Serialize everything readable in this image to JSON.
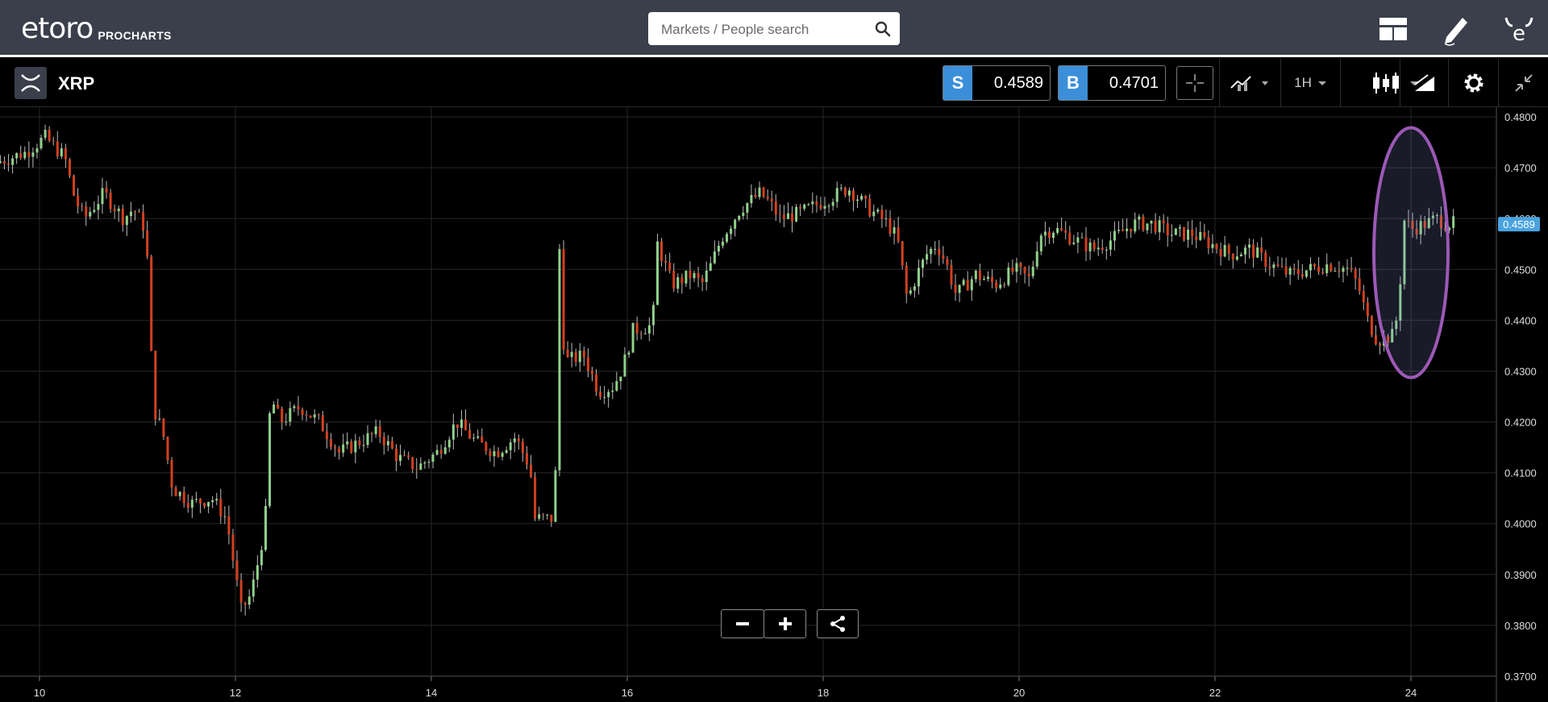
{
  "header": {
    "brand": "eToro",
    "sub_brand": "PROCHARTS",
    "search_placeholder": "Markets / People search",
    "icons": [
      "layout-icon",
      "pencil-icon",
      "etoro-profile-icon"
    ]
  },
  "toolbar": {
    "instrument": "XRP",
    "instrument_icon": "xrp-logo-icon",
    "sell_label": "S",
    "sell_price": "0.4589",
    "buy_label": "B",
    "buy_price": "0.4701",
    "timeframe": "1H",
    "accent_color": "#3b8fd9"
  },
  "chart_data": {
    "type": "candlestick",
    "symbol": "XRP",
    "timeframe": "1H",
    "xlabel": "",
    "ylabel": "",
    "x_ticks": [
      "10",
      "12",
      "14",
      "16",
      "18",
      "20",
      "22",
      "24"
    ],
    "x_range_days": [
      9.6,
      24.9
    ],
    "y_ticks": [
      "0.4800",
      "0.4700",
      "0.4600",
      "0.4500",
      "0.4400",
      "0.4300",
      "0.4200",
      "0.4100",
      "0.4000",
      "0.3900",
      "0.3800",
      "0.3700"
    ],
    "ylim": [
      0.37,
      0.48
    ],
    "current_price": "0.4589",
    "up_color": "#8fd18a",
    "down_color": "#d2401e",
    "highlight": {
      "shape": "ellipse",
      "color": "#9b59b6",
      "x_day": 24.0,
      "y_center": 0.4533
    },
    "anchors": [
      [
        9.6,
        0.471
      ],
      [
        9.9,
        0.473
      ],
      [
        10.1,
        0.476
      ],
      [
        10.3,
        0.472
      ],
      [
        10.4,
        0.464
      ],
      [
        10.5,
        0.46
      ],
      [
        10.7,
        0.465
      ],
      [
        10.9,
        0.46
      ],
      [
        11.0,
        0.462
      ],
      [
        11.12,
        0.458
      ],
      [
        11.16,
        0.447
      ],
      [
        11.2,
        0.423
      ],
      [
        11.3,
        0.418
      ],
      [
        11.4,
        0.407
      ],
      [
        11.6,
        0.404
      ],
      [
        11.8,
        0.405
      ],
      [
        11.95,
        0.401
      ],
      [
        12.1,
        0.383
      ],
      [
        12.2,
        0.386
      ],
      [
        12.3,
        0.395
      ],
      [
        12.35,
        0.402
      ],
      [
        12.4,
        0.425
      ],
      [
        12.5,
        0.42
      ],
      [
        12.7,
        0.423
      ],
      [
        12.9,
        0.42
      ],
      [
        13.1,
        0.414
      ],
      [
        13.3,
        0.416
      ],
      [
        13.5,
        0.418
      ],
      [
        13.7,
        0.413
      ],
      [
        13.9,
        0.411
      ],
      [
        14.1,
        0.414
      ],
      [
        14.3,
        0.42
      ],
      [
        14.5,
        0.416
      ],
      [
        14.7,
        0.414
      ],
      [
        14.9,
        0.417
      ],
      [
        15.05,
        0.411
      ],
      [
        15.1,
        0.401
      ],
      [
        15.3,
        0.401
      ],
      [
        15.35,
        0.454
      ],
      [
        15.4,
        0.432
      ],
      [
        15.6,
        0.433
      ],
      [
        15.75,
        0.426
      ],
      [
        15.9,
        0.427
      ],
      [
        16.0,
        0.431
      ],
      [
        16.1,
        0.438
      ],
      [
        16.3,
        0.439
      ],
      [
        16.35,
        0.455
      ],
      [
        16.5,
        0.447
      ],
      [
        16.7,
        0.449
      ],
      [
        16.8,
        0.447
      ],
      [
        16.9,
        0.451
      ],
      [
        17.0,
        0.456
      ],
      [
        17.2,
        0.462
      ],
      [
        17.4,
        0.465
      ],
      [
        17.5,
        0.463
      ],
      [
        17.6,
        0.46
      ],
      [
        17.8,
        0.461
      ],
      [
        18.0,
        0.463
      ],
      [
        18.2,
        0.465
      ],
      [
        18.3,
        0.466
      ],
      [
        18.5,
        0.462
      ],
      [
        18.7,
        0.459
      ],
      [
        18.8,
        0.456
      ],
      [
        18.9,
        0.444
      ],
      [
        19.0,
        0.449
      ],
      [
        19.1,
        0.453
      ],
      [
        19.2,
        0.455
      ],
      [
        19.3,
        0.451
      ],
      [
        19.4,
        0.445
      ],
      [
        19.6,
        0.449
      ],
      [
        19.8,
        0.447
      ],
      [
        20.0,
        0.45
      ],
      [
        20.15,
        0.448
      ],
      [
        20.25,
        0.457
      ],
      [
        20.4,
        0.458
      ],
      [
        20.6,
        0.456
      ],
      [
        20.8,
        0.454
      ],
      [
        21.0,
        0.456
      ],
      [
        21.2,
        0.459
      ],
      [
        21.4,
        0.459
      ],
      [
        21.6,
        0.457
      ],
      [
        21.8,
        0.457
      ],
      [
        22.0,
        0.455
      ],
      [
        22.2,
        0.453
      ],
      [
        22.4,
        0.454
      ],
      [
        22.6,
        0.451
      ],
      [
        22.8,
        0.449
      ],
      [
        23.0,
        0.45
      ],
      [
        23.2,
        0.451
      ],
      [
        23.4,
        0.45
      ],
      [
        23.5,
        0.447
      ],
      [
        23.6,
        0.44
      ],
      [
        23.7,
        0.436
      ],
      [
        23.85,
        0.437
      ],
      [
        23.92,
        0.442
      ],
      [
        23.96,
        0.46
      ],
      [
        24.05,
        0.458
      ],
      [
        24.2,
        0.459
      ],
      [
        24.3,
        0.46
      ],
      [
        24.4,
        0.459
      ]
    ]
  }
}
